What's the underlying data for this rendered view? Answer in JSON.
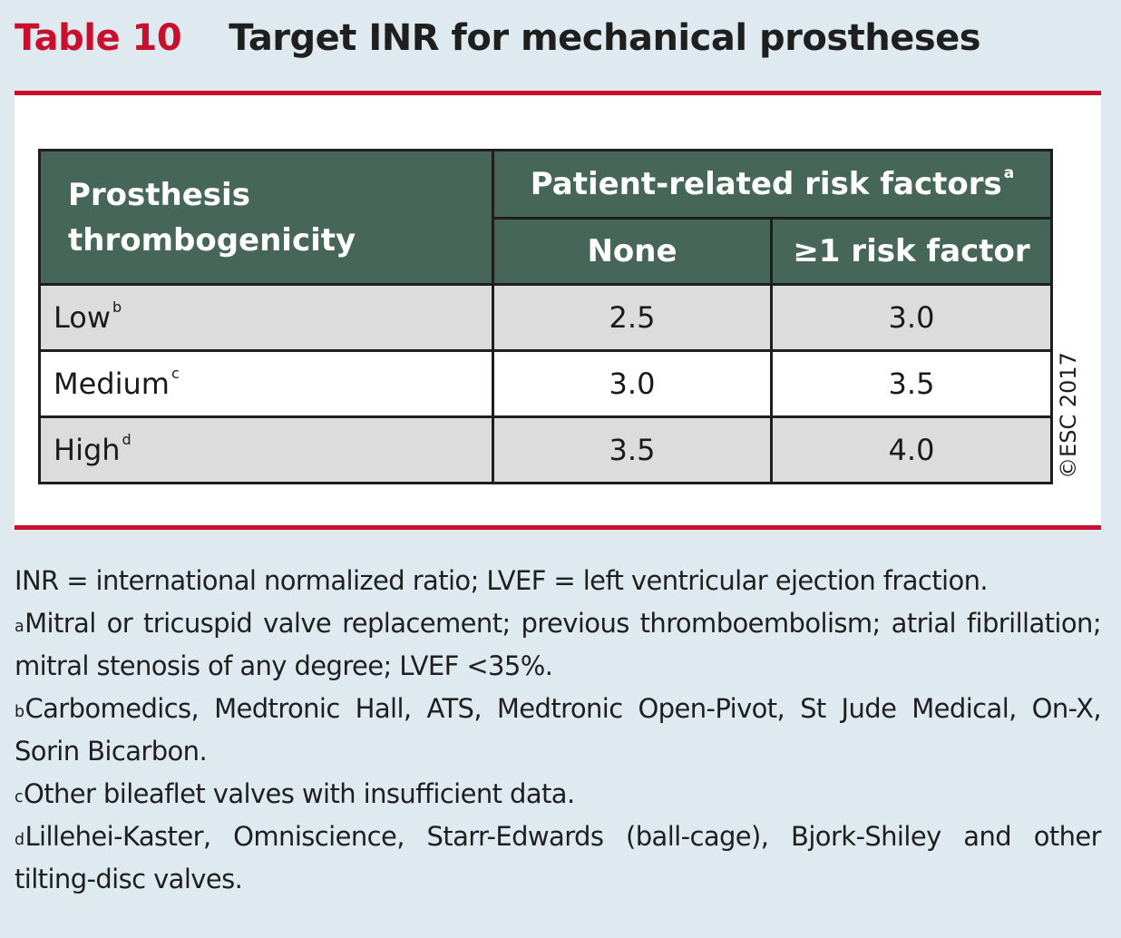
{
  "header": {
    "label": "Table 10",
    "title": "Target INR for mechanical prostheses"
  },
  "table": {
    "col_prosthesis": "Prosthesis thrombogenicity",
    "col_group": "Patient-related risk factors",
    "col_group_fn": "a",
    "col_none": "None",
    "col_risk": "≥1 risk factor",
    "rows": [
      {
        "label": "Low",
        "fn": "b",
        "none": "2.5",
        "risk": "3.0"
      },
      {
        "label": "Medium",
        "fn": "c",
        "none": "3.0",
        "risk": "3.5"
      },
      {
        "label": "High",
        "fn": "d",
        "none": "3.5",
        "risk": "4.0"
      }
    ]
  },
  "copyright": "©ESC 2017",
  "footnotes": {
    "abbrev": "INR = international normalized ratio; LVEF = left ventricular ejection fraction.",
    "a_mark": "a",
    "a_text": "Mitral or tricuspid valve replacement; previous thromboembolism; atrial fibrillation; mitral stenosis of any degree; LVEF <35%.",
    "b_mark": "b",
    "b_text": "Carbomedics, Medtronic Hall, ATS, Medtronic Open-Pivot, St Jude Medical, On-X, Sorin Bicarbon.",
    "c_mark": "c",
    "c_text": "Other bileaflet valves with insufficient data.",
    "d_mark": "d",
    "d_text": "Lillehei-Kaster, Omniscience, Starr-Edwards (ball-cage), Bjork-Shiley and other tilting-disc valves."
  }
}
